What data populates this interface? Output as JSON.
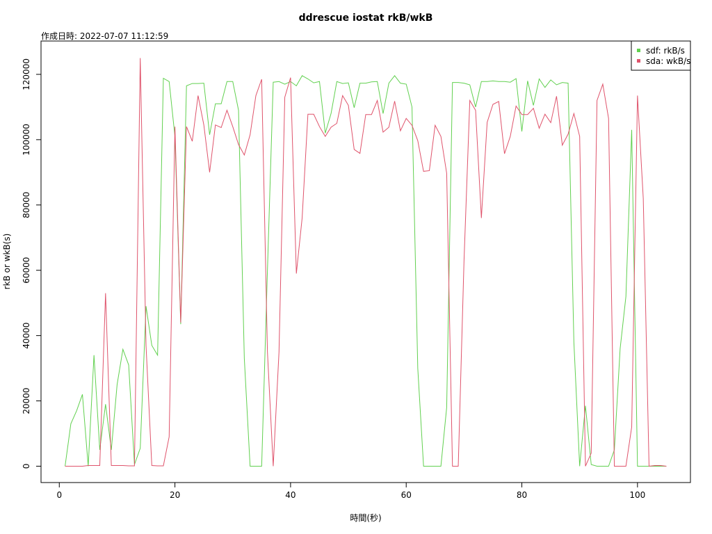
{
  "chart_data": {
    "type": "line",
    "title": "ddrescue iostat rkB/wkB",
    "subtitle": "作成日時: 2022-07-07 11:12:59",
    "x_label": "時間(秒)",
    "y_label": "rkB or wkB(s)",
    "x": [
      1,
      2,
      3,
      4,
      5,
      6,
      7,
      8,
      9,
      10,
      11,
      12,
      13,
      14,
      15,
      16,
      17,
      18,
      19,
      20,
      21,
      22,
      23,
      24,
      25,
      26,
      27,
      28,
      29,
      30,
      31,
      32,
      33,
      34,
      35,
      36,
      37,
      38,
      39,
      40,
      41,
      42,
      43,
      44,
      45,
      46,
      47,
      48,
      49,
      50,
      51,
      52,
      53,
      54,
      55,
      56,
      57,
      58,
      59,
      60,
      61,
      62,
      63,
      64,
      65,
      66,
      67,
      68,
      69,
      70,
      71,
      72,
      73,
      74,
      75,
      76,
      77,
      78,
      79,
      80,
      81,
      82,
      83,
      84,
      85,
      86,
      87,
      88,
      89,
      90,
      91,
      92,
      93,
      94,
      95,
      96,
      97,
      98,
      99,
      100,
      101,
      102,
      103,
      104,
      105
    ],
    "series": [
      {
        "name": "sdf: rkB/s",
        "color": "#61D04F",
        "values": [
          0,
          13000,
          17000,
          22000,
          0,
          34000,
          5000,
          19000,
          5000,
          25000,
          35800,
          31000,
          500,
          5500,
          49000,
          37000,
          34000,
          118800,
          117800,
          101000,
          43500,
          116500,
          117200,
          117200,
          117300,
          101500,
          111000,
          111000,
          117800,
          117800,
          109000,
          33000,
          0,
          0,
          0,
          60000,
          117600,
          117800,
          117000,
          117800,
          116500,
          119600,
          118600,
          117400,
          117800,
          102000,
          108000,
          117800,
          117200,
          117400,
          109800,
          117300,
          117300,
          117700,
          117800,
          108000,
          117300,
          119600,
          117300,
          117000,
          110000,
          30000,
          0,
          0,
          0,
          0,
          18000,
          117500,
          117500,
          117300,
          116800,
          110000,
          117800,
          117800,
          118000,
          117800,
          117800,
          117600,
          118700,
          102500,
          118000,
          110500,
          118600,
          116000,
          118300,
          116800,
          117500,
          117300,
          38000,
          0,
          18500,
          500,
          0,
          0,
          0,
          5000,
          36000,
          52000,
          103000,
          0,
          0,
          0,
          0,
          0,
          0
        ]
      },
      {
        "name": "sda: wkB/s",
        "color": "#DF536B",
        "values": [
          0,
          0,
          0,
          0,
          200,
          200,
          200,
          53000,
          200,
          200,
          200,
          100,
          100,
          125000,
          37000,
          200,
          100,
          100,
          9000,
          104000,
          44000,
          104000,
          99500,
          113500,
          104500,
          90000,
          104500,
          103700,
          109000,
          104000,
          98500,
          95300,
          101500,
          113500,
          118500,
          35000,
          0,
          35000,
          113000,
          119000,
          59000,
          76000,
          107800,
          107800,
          104000,
          101000,
          103800,
          105000,
          113500,
          110500,
          97000,
          95800,
          107700,
          107700,
          112000,
          102300,
          103800,
          111800,
          102700,
          106500,
          104400,
          99700,
          90300,
          90500,
          104400,
          101000,
          89700,
          0,
          0,
          63000,
          112000,
          109000,
          76000,
          105300,
          110800,
          111700,
          95700,
          101000,
          110300,
          107700,
          107700,
          109600,
          103500,
          107800,
          105200,
          113300,
          98300,
          101700,
          108000,
          101000,
          0,
          4000,
          112000,
          117000,
          106500,
          0,
          0,
          0,
          12000,
          113500,
          82000,
          0,
          200,
          200,
          0
        ]
      }
    ],
    "xlim": [
      -3.16,
      109.16
    ],
    "ylim": [
      -5008,
      130208
    ],
    "xticks": [
      0,
      20,
      40,
      60,
      80,
      100
    ],
    "yticks": [
      0,
      20000,
      40000,
      60000,
      80000,
      100000,
      120000
    ],
    "legend": "topright"
  }
}
